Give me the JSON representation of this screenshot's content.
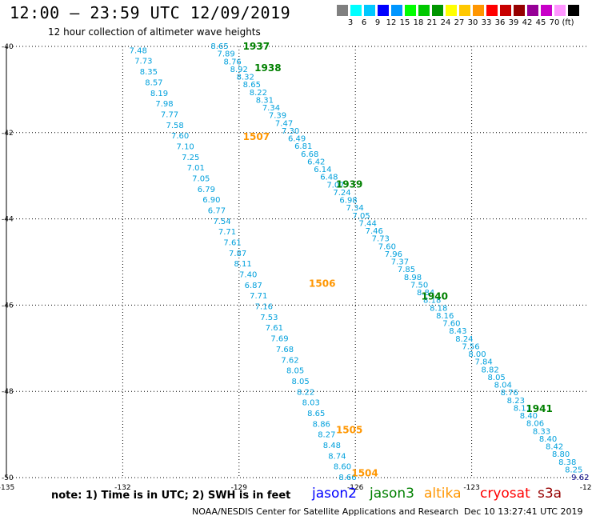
{
  "title": "12:00 — 23:59 UTC 12/09/2019",
  "subtitle": "12 hour collection of altimeter wave heights",
  "legend": {
    "colors": [
      "#808080",
      "#00ffff",
      "#00c8ff",
      "#0000ff",
      "#0096ff",
      "#00ff00",
      "#00c800",
      "#009600",
      "#ffff00",
      "#ffc800",
      "#ff9600",
      "#ff0000",
      "#c80000",
      "#960000",
      "#960096",
      "#c800c8",
      "#ff96ff",
      "#000000"
    ],
    "labels": [
      "3",
      "6",
      "9",
      "12",
      "15",
      "18",
      "21",
      "24",
      "27",
      "30",
      "33",
      "36",
      "39",
      "42",
      "45",
      "70",
      "(ft)"
    ]
  },
  "map": {
    "lon_range": [
      -135,
      -120
    ],
    "lat_range": [
      -50,
      -40
    ],
    "lon_ticks": [
      -135,
      -132,
      -129,
      -126,
      -123,
      -120
    ],
    "lat_ticks": [
      -40,
      -42,
      -44,
      -46,
      -48,
      -50
    ],
    "lon_tick_labels": [
      "-135",
      "-132",
      "-129",
      "-126",
      "-123",
      "-120"
    ],
    "lat_tick_labels": [
      "-40",
      "-42",
      "-44",
      "-46",
      "-48",
      "-50"
    ],
    "track_color": "#00a0dc",
    "tracks": [
      {
        "satellite": "jason3",
        "values": [
          "8.65",
          "7.89",
          "8.76",
          "8.92",
          "8.32",
          "8.65",
          "8.22",
          "8.31",
          "7.34",
          "7.39",
          "7.47",
          "7.30",
          "6.49",
          "6.81",
          "6.68",
          "6.42",
          "6.14",
          "6.48",
          "7.07",
          "7.24",
          "6.98",
          "7.34",
          "7.05",
          "7.44",
          "7.46",
          "7.73",
          "7.60",
          "7.96",
          "7.37",
          "7.85",
          "8.98",
          "7.50",
          "8.84",
          "8.18",
          "8.18",
          "8.16",
          "7.60",
          "8.43",
          "8.24",
          "7.56",
          "8.00",
          "7.84",
          "8.82",
          "8.05",
          "8.04",
          "8.76",
          "8.23",
          "8.11",
          "8.40",
          "8.06",
          "8.33",
          "8.40",
          "8.42",
          "8.80",
          "8.38",
          "8.25",
          "9.62"
        ],
        "start": [
          -129.5,
          -40.0
        ],
        "end": [
          -120.2,
          -50.0
        ]
      },
      {
        "satellite": "altika",
        "values": [
          "7.48",
          "7.73",
          "8.35",
          "8.57",
          "8.19",
          "7.98",
          "7.77",
          "7.58",
          "7.60",
          "7.10",
          "7.25",
          "7.01",
          "7.05",
          "6.79",
          "6.90",
          "6.77",
          "7.54",
          "7.71",
          "7.61",
          "7.87",
          "8.11",
          "7.40",
          "6.87",
          "7.71",
          "7.16",
          "7.53",
          "7.61",
          "7.69",
          "7.68",
          "7.62",
          "8.05",
          "8.05",
          "8.22",
          "8.03",
          "8.65",
          "8.86",
          "8.27",
          "8.48",
          "8.74",
          "8.60",
          "8.66"
        ],
        "start": [
          -131.6,
          -40.1
        ],
        "end": [
          -126.2,
          -50.0
        ]
      }
    ],
    "time_labels": [
      {
        "text": "1937",
        "color": "#008000",
        "lon": -128.9,
        "lat": -40.0
      },
      {
        "text": "1938",
        "color": "#008000",
        "lon": -128.6,
        "lat": -40.5
      },
      {
        "text": "1939",
        "color": "#008000",
        "lon": -126.5,
        "lat": -43.2
      },
      {
        "text": "1940",
        "color": "#008000",
        "lon": -124.3,
        "lat": -45.8
      },
      {
        "text": "1941",
        "color": "#008000",
        "lon": -121.6,
        "lat": -48.4
      },
      {
        "text": "1507",
        "color": "#ff9600",
        "lon": -128.9,
        "lat": -42.1
      },
      {
        "text": "1506",
        "color": "#ff9600",
        "lon": -127.2,
        "lat": -45.5
      },
      {
        "text": "1505",
        "color": "#ff9600",
        "lon": -126.5,
        "lat": -48.9
      },
      {
        "text": "1504",
        "color": "#ff9600",
        "lon": -126.1,
        "lat": -49.9
      }
    ]
  },
  "footer": {
    "note": "note: 1) Time is in UTC; 2) SWH is in feet",
    "satellites": [
      {
        "name": "jason2",
        "color": "#0000ff"
      },
      {
        "name": "jason3",
        "color": "#008000"
      },
      {
        "name": "altika",
        "color": "#ff9600"
      },
      {
        "name": "cryosat",
        "color": "#ff0000"
      },
      {
        "name": "s3a",
        "color": "#960000"
      }
    ],
    "credit": "NOAA/NESDIS Center for Satellite Applications and Research",
    "timestamp": "Dec 10 13:27:41 UTC 2019"
  }
}
